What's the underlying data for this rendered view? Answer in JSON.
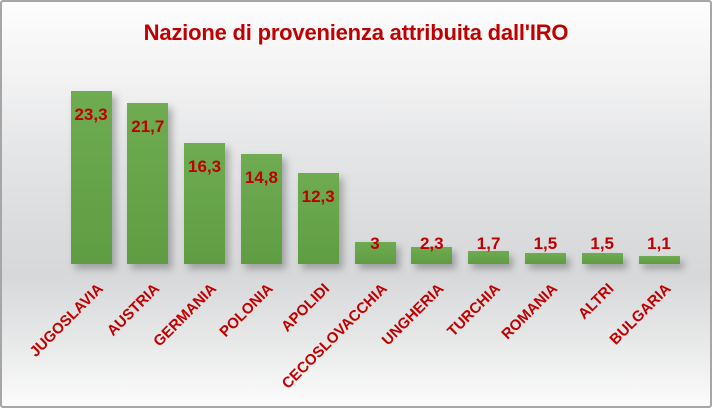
{
  "chart_data": {
    "type": "bar",
    "title": "Nazione di provenienza attribuita dall'IRO",
    "categories": [
      "JUGOSLAVIA",
      "AUSTRIA",
      "GERMANIA",
      "POLONIA",
      "APOLIDI",
      "CECOSLOVACCHIA",
      "UNGHERIA",
      "TURCHIA",
      "ROMANIA",
      "ALTRI",
      "BULGARIA"
    ],
    "values": [
      23.3,
      21.7,
      16.3,
      14.8,
      12.3,
      3,
      2.3,
      1.7,
      1.5,
      1.5,
      1.1
    ],
    "value_labels": [
      "23,3",
      "21,7",
      "16,3",
      "14,8",
      "12,3",
      "3",
      "2,3",
      "1,7",
      "1,5",
      "1,5",
      "1,1"
    ],
    "xlabel": "",
    "ylabel": "",
    "ylim": [
      0,
      25
    ],
    "grid": false,
    "legend": null,
    "value_label_position": "inside-end, outside-end when bar too short",
    "category_label_rotation_deg": 45,
    "colors": {
      "bar_light": "#6fac51",
      "bar_dark": "#5f9c42",
      "label_red": "#c00000",
      "title_red": "#c00000",
      "border_gray": "#a6a6a6"
    }
  }
}
